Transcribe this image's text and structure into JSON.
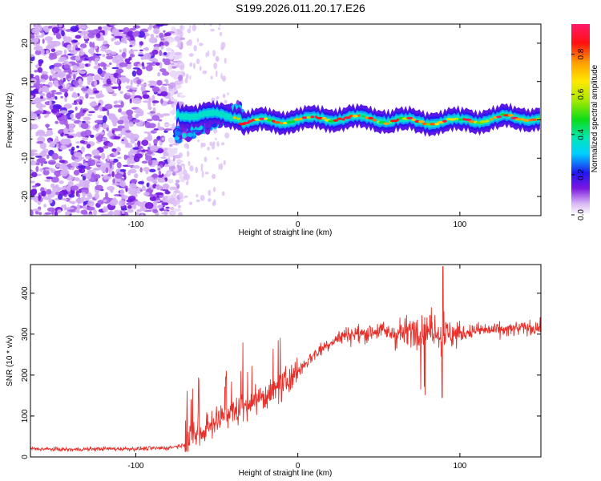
{
  "title": "S199.2026.011.20.17.E26",
  "chart_data": [
    {
      "type": "heatmap",
      "xlabel": "Height of straight line (km)",
      "ylabel": "Frequency (Hz)",
      "xlim": [
        -165,
        150
      ],
      "ylim": [
        -25,
        25
      ],
      "xticks": [
        -100,
        0,
        100
      ],
      "yticks": [
        -20,
        -10,
        0,
        10,
        20
      ],
      "colorbar": {
        "label": "Normalized spectral amplitude",
        "range": [
          0,
          0.95
        ],
        "ticks": [
          0.0,
          0.2,
          0.4,
          0.6,
          0.8
        ]
      },
      "regions": [
        {
          "x": [
            -165,
            -75
          ],
          "freq": [
            -25,
            25
          ],
          "amplitude": "0.05-0.25",
          "pattern": "broadband noise"
        },
        {
          "x": [
            -75,
            -35
          ],
          "freq": [
            -6,
            6
          ],
          "amplitude": "0.1-0.6",
          "pattern": "ramping signal"
        },
        {
          "x": [
            -35,
            150
          ],
          "freq": [
            -1.5,
            1.5
          ],
          "amplitude": "0.4-0.95",
          "pattern": "narrow band near 0 Hz"
        }
      ]
    },
    {
      "type": "line",
      "xlabel": "Height of straight line (km)",
      "ylabel": "SNR (10 * v/v)",
      "xlim": [
        -165,
        150
      ],
      "ylim": [
        0,
        470
      ],
      "xticks": [
        -100,
        0,
        100
      ],
      "yticks": [
        0,
        100,
        200,
        300,
        400
      ],
      "color": "#e8302a",
      "series": [
        {
          "name": "SNR",
          "x": [
            -165,
            -140,
            -120,
            -100,
            -80,
            -70,
            -60,
            -50,
            -40,
            -30,
            -20,
            -10,
            0,
            10,
            20,
            30,
            40,
            50,
            60,
            70,
            80,
            90,
            100,
            110,
            120,
            130,
            140,
            150
          ],
          "values": [
            20,
            18,
            20,
            20,
            22,
            30,
            60,
            90,
            110,
            130,
            150,
            170,
            210,
            250,
            280,
            300,
            300,
            310,
            300,
            310,
            310,
            300,
            300,
            310,
            310,
            310,
            315,
            315
          ]
        }
      ]
    }
  ]
}
